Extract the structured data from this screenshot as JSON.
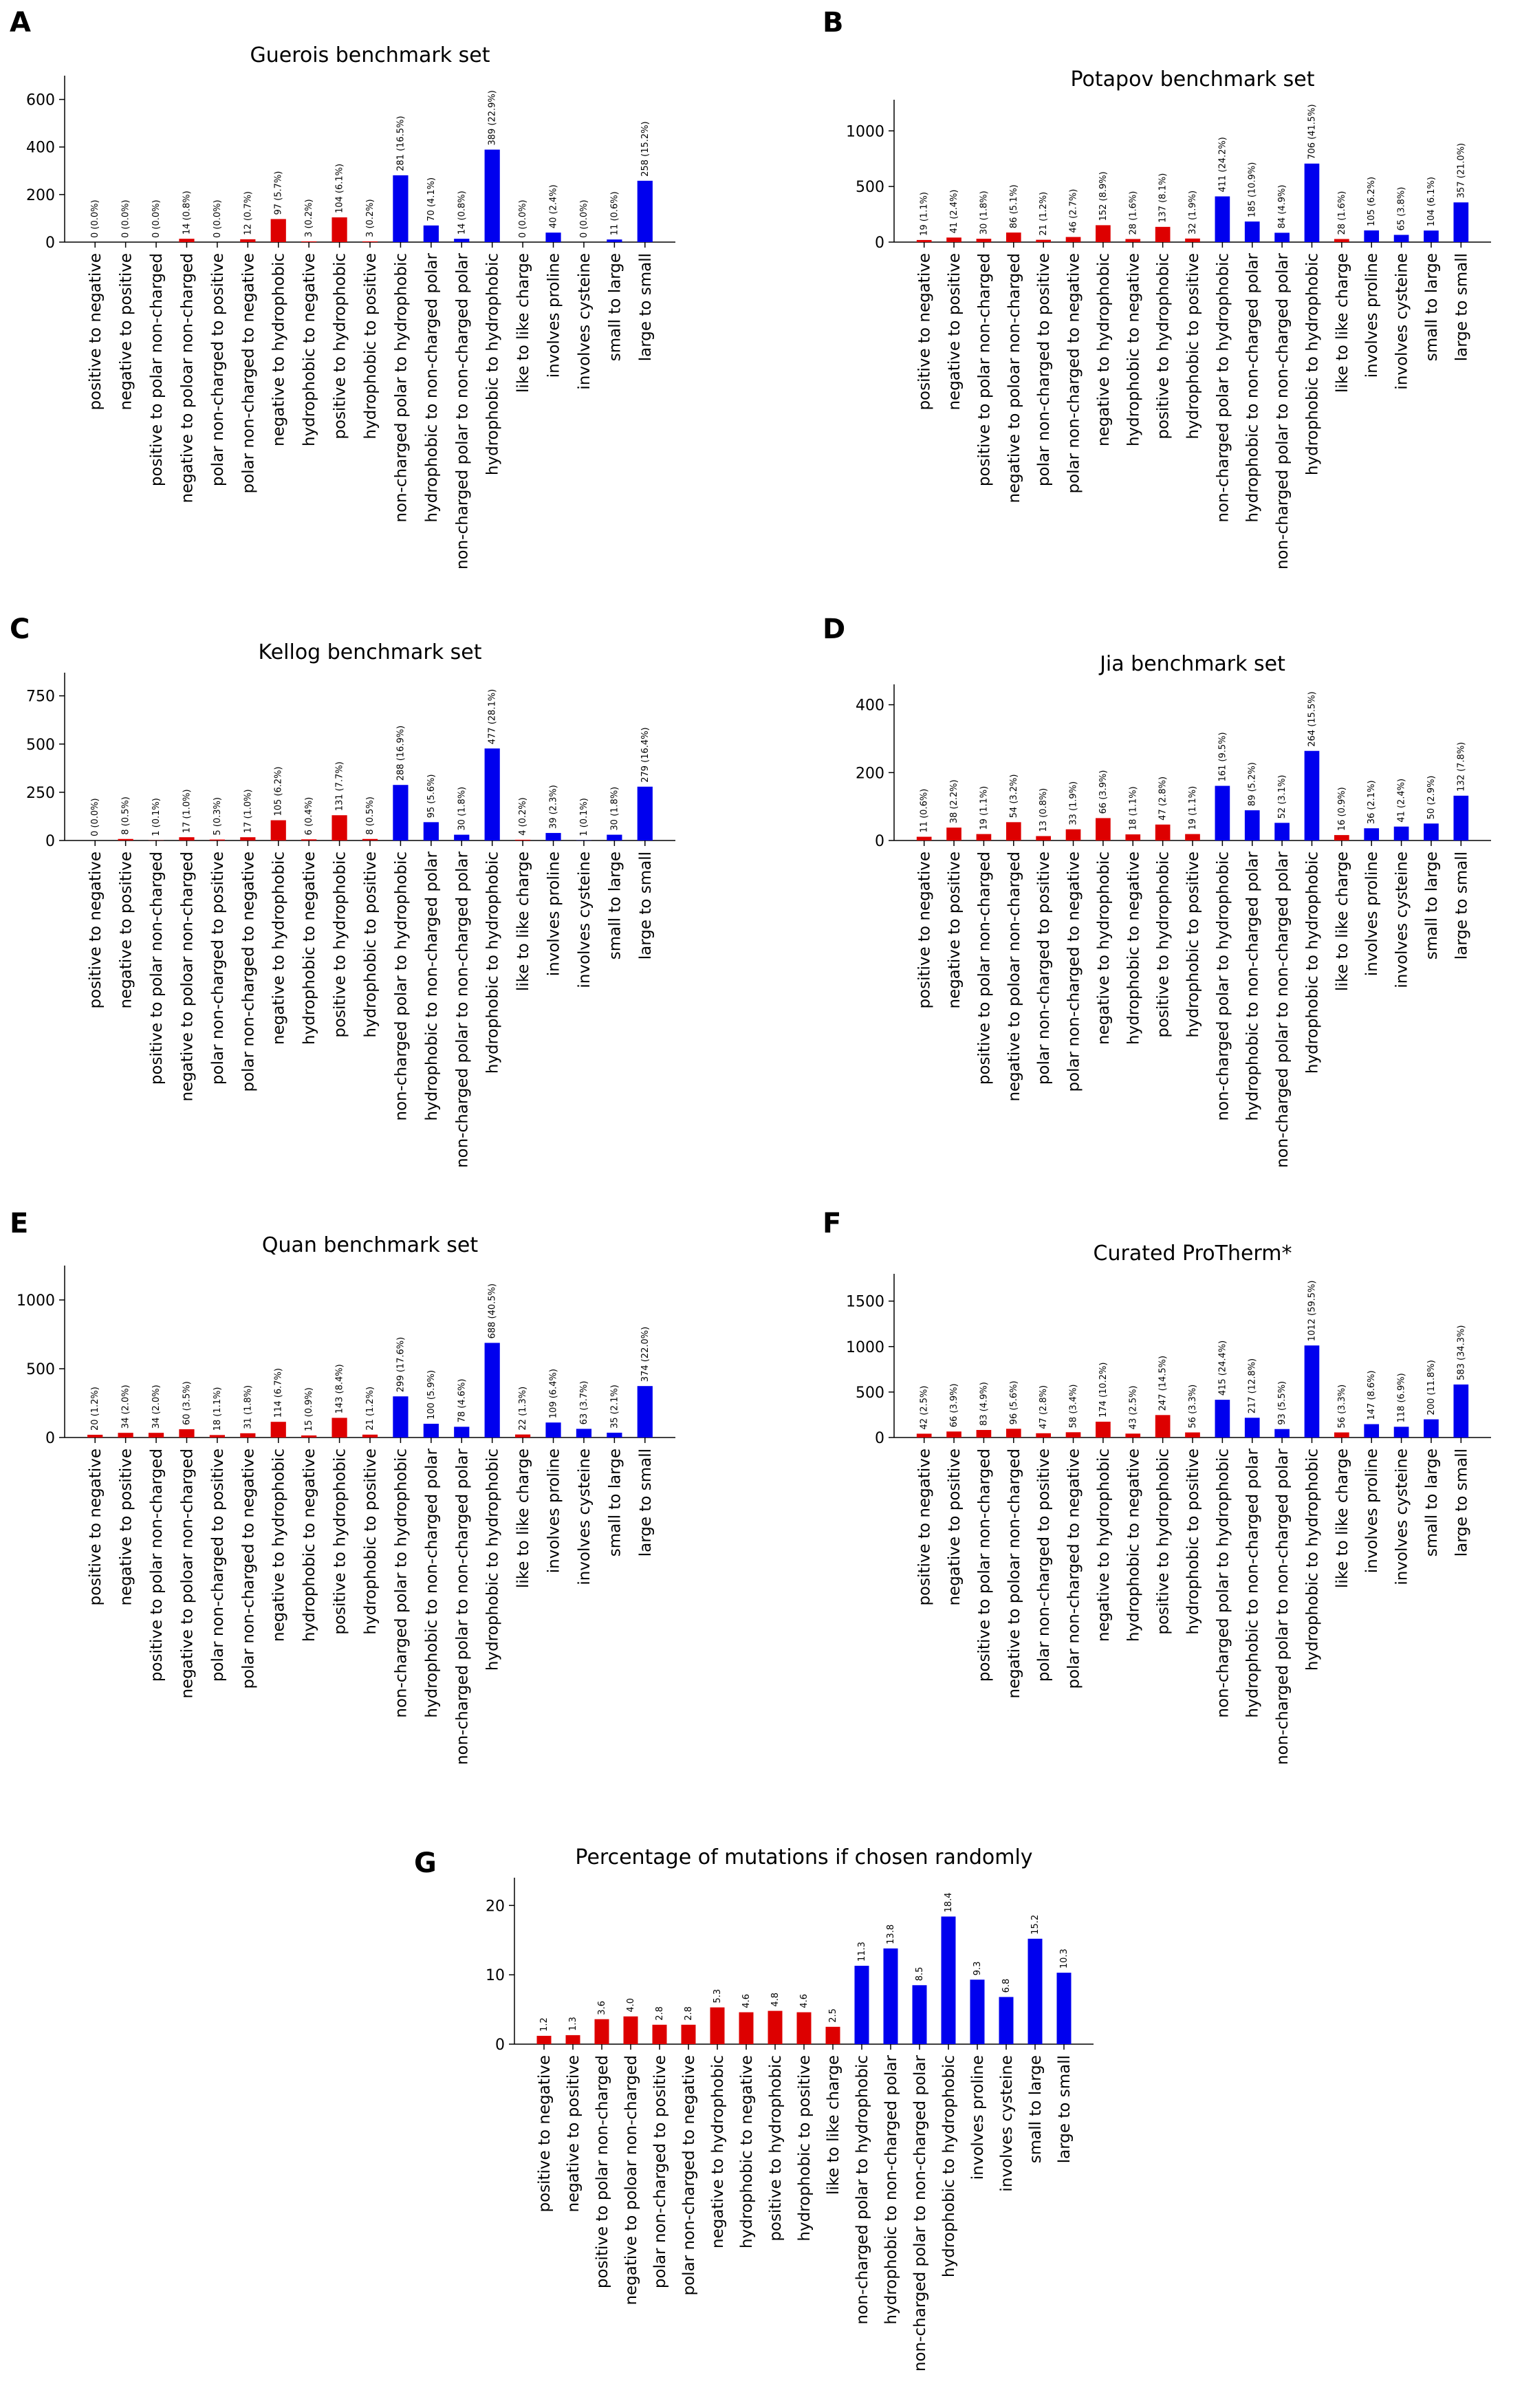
{
  "figure": {
    "colors": {
      "red": "#dd0000",
      "blue": "#0000ee",
      "axis": "#000000"
    }
  },
  "categories": [
    "positive to negative",
    "negative to positive",
    "positive to polar non-charged",
    "negative to poloar non-charged",
    "polar non-charged to positive",
    "polar non-charged to negative",
    "negative to hydrophobic",
    "hydrophobic to negative",
    "positive to hydrophobic",
    "hydrophobic to positive",
    "non-charged polar to hydrophobic",
    "hydrophobic to non-charged polar",
    "non-charged polar to non-charged polar",
    "hydrophobic to hydrophobic",
    "like to like charge",
    "involves proline",
    "involves cysteine",
    "small to large",
    "large to small"
  ],
  "random_categories": [
    "positive to negative",
    "negative to positive",
    "positive to polar non-charged",
    "negative to poloar non-charged",
    "polar non-charged to positive",
    "polar non-charged to negative",
    "negative to hydrophobic",
    "hydrophobic to negative",
    "positive to hydrophobic",
    "hydrophobic to positive",
    "like to like charge",
    "non-charged polar to hydrophobic",
    "hydrophobic to non-charged polar",
    "non-charged polar to non-charged polar",
    "hydrophobic to hydrophobic",
    "involves proline",
    "involves cysteine",
    "small to large",
    "large to small"
  ],
  "chart_data": [
    {
      "panel": "A",
      "type": "bar",
      "title": "Guerois benchmark set",
      "ylim": [
        0,
        700
      ],
      "yticks": [
        0,
        200,
        400,
        600
      ],
      "colors": [
        "red",
        "red",
        "red",
        "red",
        "red",
        "red",
        "red",
        "red",
        "red",
        "red",
        "blue",
        "blue",
        "blue",
        "blue",
        "red",
        "blue",
        "blue",
        "blue",
        "blue"
      ],
      "values": [
        0,
        0,
        0,
        14,
        0,
        12,
        97,
        3,
        104,
        3,
        281,
        70,
        14,
        389,
        0,
        40,
        0,
        11,
        258
      ],
      "labels": [
        "0 (0.0%)",
        "0 (0.0%)",
        "0 (0.0%)",
        "14 (0.8%)",
        "0 (0.0%)",
        "12 (0.7%)",
        "97 (5.7%)",
        "3 (0.2%)",
        "104 (6.1%)",
        "3 (0.2%)",
        "281 (16.5%)",
        "70 (4.1%)",
        "14 (0.8%)",
        "389 (22.9%)",
        "0 (0.0%)",
        "40 (2.4%)",
        "0 (0.0%)",
        "11 (0.6%)",
        "258 (15.2%)"
      ]
    },
    {
      "panel": "B",
      "type": "bar",
      "title": "Potapov benchmark set",
      "ylim": [
        0,
        1280
      ],
      "yticks": [
        0,
        500,
        1000
      ],
      "colors": [
        "red",
        "red",
        "red",
        "red",
        "red",
        "red",
        "red",
        "red",
        "red",
        "red",
        "blue",
        "blue",
        "blue",
        "blue",
        "red",
        "blue",
        "blue",
        "blue",
        "blue"
      ],
      "values": [
        19,
        41,
        30,
        86,
        21,
        46,
        152,
        28,
        137,
        32,
        411,
        185,
        84,
        706,
        28,
        105,
        65,
        104,
        357
      ],
      "labels": [
        "19 (1.1%)",
        "41 (2.4%)",
        "30 (1.8%)",
        "86 (5.1%)",
        "21 (1.2%)",
        "46 (2.7%)",
        "152 (8.9%)",
        "28 (1.6%)",
        "137 (8.1%)",
        "32 (1.9%)",
        "411 (24.2%)",
        "185 (10.9%)",
        "84 (4.9%)",
        "706 (41.5%)",
        "28 (1.6%)",
        "105 (6.2%)",
        "65 (3.8%)",
        "104 (6.1%)",
        "357 (21.0%)"
      ]
    },
    {
      "panel": "C",
      "type": "bar",
      "title": "Kellog benchmark set",
      "ylim": [
        0,
        870
      ],
      "yticks": [
        0,
        250,
        500,
        750
      ],
      "colors": [
        "red",
        "red",
        "red",
        "red",
        "red",
        "red",
        "red",
        "red",
        "red",
        "red",
        "blue",
        "blue",
        "blue",
        "blue",
        "red",
        "blue",
        "blue",
        "blue",
        "blue"
      ],
      "values": [
        0,
        8,
        1,
        17,
        5,
        17,
        105,
        6,
        131,
        8,
        288,
        95,
        30,
        477,
        4,
        39,
        1,
        30,
        279
      ],
      "labels": [
        "0 (0.0%)",
        "8 (0.5%)",
        "1 (0.1%)",
        "17 (1.0%)",
        "5 (0.3%)",
        "17 (1.0%)",
        "105 (6.2%)",
        "6 (0.4%)",
        "131 (7.7%)",
        "8 (0.5%)",
        "288 (16.9%)",
        "95 (5.6%)",
        "30 (1.8%)",
        "477 (28.1%)",
        "4 (0.2%)",
        "39 (2.3%)",
        "1 (0.1%)",
        "30 (1.8%)",
        "279 (16.4%)"
      ]
    },
    {
      "panel": "D",
      "type": "bar",
      "title": "Jia benchmark set",
      "ylim": [
        0,
        460
      ],
      "yticks": [
        0,
        200,
        400
      ],
      "colors": [
        "red",
        "red",
        "red",
        "red",
        "red",
        "red",
        "red",
        "red",
        "red",
        "red",
        "blue",
        "blue",
        "blue",
        "blue",
        "red",
        "blue",
        "blue",
        "blue",
        "blue"
      ],
      "values": [
        11,
        38,
        19,
        54,
        13,
        33,
        66,
        18,
        47,
        19,
        161,
        89,
        52,
        264,
        16,
        36,
        41,
        50,
        132
      ],
      "labels": [
        "11 (0.6%)",
        "38 (2.2%)",
        "19 (1.1%)",
        "54 (3.2%)",
        "13 (0.8%)",
        "33 (1.9%)",
        "66 (3.9%)",
        "18 (1.1%)",
        "47 (2.8%)",
        "19 (1.1%)",
        "161 (9.5%)",
        "89 (5.2%)",
        "52 (3.1%)",
        "264 (15.5%)",
        "16 (0.9%)",
        "36 (2.1%)",
        "41 (2.4%)",
        "50 (2.9%)",
        "132 (7.8%)"
      ]
    },
    {
      "panel": "E",
      "type": "bar",
      "title": "Quan benchmark set",
      "ylim": [
        0,
        1250
      ],
      "yticks": [
        0,
        500,
        1000
      ],
      "colors": [
        "red",
        "red",
        "red",
        "red",
        "red",
        "red",
        "red",
        "red",
        "red",
        "red",
        "blue",
        "blue",
        "blue",
        "blue",
        "red",
        "blue",
        "blue",
        "blue",
        "blue"
      ],
      "values": [
        20,
        34,
        34,
        60,
        18,
        31,
        114,
        15,
        143,
        21,
        299,
        100,
        78,
        688,
        22,
        109,
        63,
        35,
        374
      ],
      "labels": [
        "20 (1.2%)",
        "34 (2.0%)",
        "34 (2.0%)",
        "60 (3.5%)",
        "18 (1.1%)",
        "31 (1.8%)",
        "114 (6.7%)",
        "15 (0.9%)",
        "143 (8.4%)",
        "21 (1.2%)",
        "299 (17.6%)",
        "100 (5.9%)",
        "78 (4.6%)",
        "688 (40.5%)",
        "22 (1.3%)",
        "109 (6.4%)",
        "63 (3.7%)",
        "35 (2.1%)",
        "374 (22.0%)"
      ]
    },
    {
      "panel": "F",
      "type": "bar",
      "title": "Curated ProTherm*",
      "ylim": [
        0,
        1800
      ],
      "yticks": [
        0,
        500,
        1000,
        1500
      ],
      "colors": [
        "red",
        "red",
        "red",
        "red",
        "red",
        "red",
        "red",
        "red",
        "red",
        "red",
        "blue",
        "blue",
        "blue",
        "blue",
        "red",
        "blue",
        "blue",
        "blue",
        "blue"
      ],
      "values": [
        42,
        66,
        83,
        96,
        47,
        58,
        174,
        43,
        247,
        56,
        415,
        217,
        93,
        1012,
        56,
        147,
        118,
        200,
        583
      ],
      "labels": [
        "42 (2.5%)",
        "66 (3.9%)",
        "83 (4.9%)",
        "96 (5.6%)",
        "47 (2.8%)",
        "58 (3.4%)",
        "174 (10.2%)",
        "43 (2.5%)",
        "247 (14.5%)",
        "56 (3.3%)",
        "415 (24.4%)",
        "217 (12.8%)",
        "93 (5.5%)",
        "1012 (59.5%)",
        "56 (3.3%)",
        "147 (8.6%)",
        "118 (6.9%)",
        "200 (11.8%)",
        "583 (34.3%)"
      ]
    },
    {
      "panel": "G",
      "type": "bar",
      "title": "Percentage of mutations if chosen randomly",
      "ylim": [
        0,
        24
      ],
      "yticks": [
        0,
        10,
        20
      ],
      "colors": [
        "red",
        "red",
        "red",
        "red",
        "red",
        "red",
        "red",
        "red",
        "red",
        "red",
        "red",
        "blue",
        "blue",
        "blue",
        "blue",
        "blue",
        "blue",
        "blue",
        "blue"
      ],
      "values": [
        1.2,
        1.3,
        3.6,
        4.0,
        2.8,
        2.8,
        5.3,
        4.6,
        4.8,
        4.6,
        2.5,
        11.3,
        13.8,
        8.5,
        18.4,
        9.3,
        6.8,
        15.2,
        10.3
      ],
      "labels": [
        "1.2",
        "1.3",
        "3.6",
        "4.0",
        "2.8",
        "2.8",
        "5.3",
        "4.6",
        "4.8",
        "4.6",
        "2.5",
        "11.3",
        "13.8",
        "8.5",
        "18.4",
        "9.3",
        "6.8",
        "15.2",
        "10.3"
      ]
    }
  ]
}
